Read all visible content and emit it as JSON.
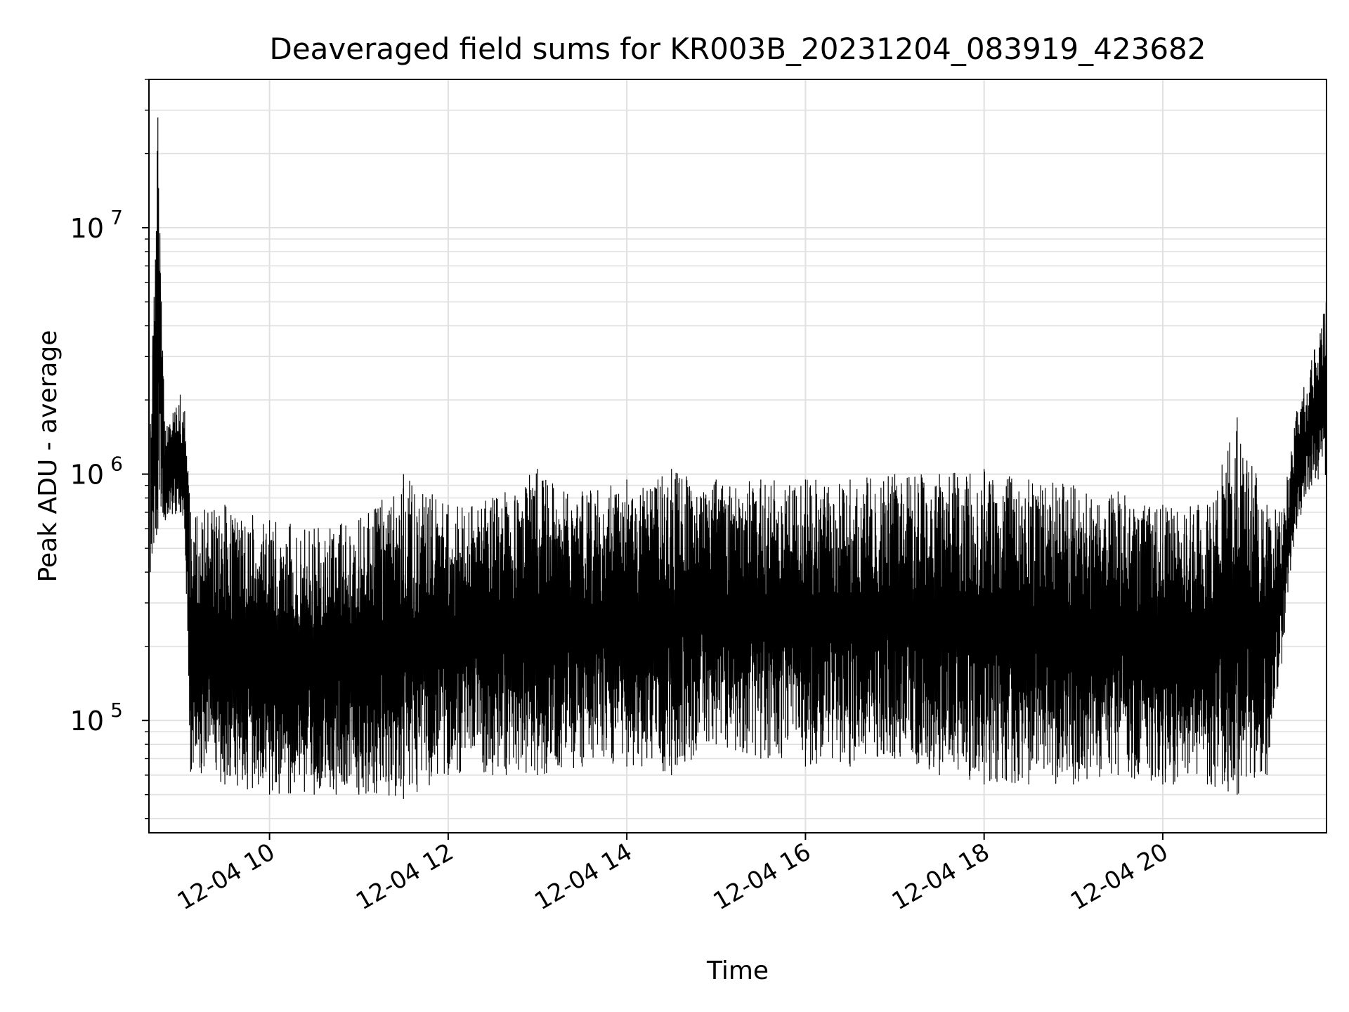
{
  "chart_data": {
    "type": "line",
    "title": "Deaveraged field sums for KR003B_20231204_083919_423682",
    "xlabel": "Time",
    "ylabel": "Peak ADU - average",
    "yscale": "log",
    "grid": true,
    "line_color": "#000000",
    "grid_color": "#e0e0e0",
    "xlim": [
      "2023-12-04 08:39",
      "2023-12-04 21:50"
    ],
    "ylim": [
      35000,
      40000000
    ],
    "x_ticks": [
      {
        "time": "2023-12-04 10:00",
        "label": "12-04 10"
      },
      {
        "time": "2023-12-04 12:00",
        "label": "12-04 12"
      },
      {
        "time": "2023-12-04 14:00",
        "label": "12-04 14"
      },
      {
        "time": "2023-12-04 16:00",
        "label": "12-04 16"
      },
      {
        "time": "2023-12-04 18:00",
        "label": "12-04 18"
      },
      {
        "time": "2023-12-04 20:00",
        "label": "12-04 20"
      }
    ],
    "y_ticks": [
      {
        "value": 100000,
        "base": "10",
        "exp": "5"
      },
      {
        "value": 1000000,
        "base": "10",
        "exp": "6"
      },
      {
        "value": 10000000,
        "base": "10",
        "exp": "7"
      }
    ],
    "series": [
      {
        "envelope": [
          {
            "time": "2023-12-04 08:40",
            "low": 400000,
            "high": 1600000
          },
          {
            "time": "2023-12-04 08:45",
            "low": 600000,
            "high": 28000000
          },
          {
            "time": "2023-12-04 08:50",
            "low": 650000,
            "high": 1500000
          },
          {
            "time": "2023-12-04 09:00",
            "low": 700000,
            "high": 2100000
          },
          {
            "time": "2023-12-04 09:03",
            "low": 600000,
            "high": 1800000
          },
          {
            "time": "2023-12-04 09:07",
            "low": 62000,
            "high": 700000
          },
          {
            "time": "2023-12-04 09:30",
            "low": 55000,
            "high": 750000
          },
          {
            "time": "2023-12-04 10:00",
            "low": 50000,
            "high": 650000
          },
          {
            "time": "2023-12-04 10:30",
            "low": 50000,
            "high": 600000
          },
          {
            "time": "2023-12-04 11:00",
            "low": 50000,
            "high": 650000
          },
          {
            "time": "2023-12-04 11:30",
            "low": 48000,
            "high": 1000000
          },
          {
            "time": "2023-12-04 12:00",
            "low": 60000,
            "high": 750000
          },
          {
            "time": "2023-12-04 12:30",
            "low": 60000,
            "high": 800000
          },
          {
            "time": "2023-12-04 13:00",
            "low": 60000,
            "high": 1050000
          },
          {
            "time": "2023-12-04 13:30",
            "low": 65000,
            "high": 850000
          },
          {
            "time": "2023-12-04 14:00",
            "low": 65000,
            "high": 950000
          },
          {
            "time": "2023-12-04 14:30",
            "low": 60000,
            "high": 1050000
          },
          {
            "time": "2023-12-04 15:00",
            "low": 80000,
            "high": 950000
          },
          {
            "time": "2023-12-04 15:30",
            "low": 70000,
            "high": 950000
          },
          {
            "time": "2023-12-04 16:00",
            "low": 65000,
            "high": 950000
          },
          {
            "time": "2023-12-04 16:30",
            "low": 65000,
            "high": 950000
          },
          {
            "time": "2023-12-04 17:00",
            "low": 70000,
            "high": 1000000
          },
          {
            "time": "2023-12-04 17:30",
            "low": 60000,
            "high": 1000000
          },
          {
            "time": "2023-12-04 18:00",
            "low": 55000,
            "high": 1050000
          },
          {
            "time": "2023-12-04 18:30",
            "low": 55000,
            "high": 950000
          },
          {
            "time": "2023-12-04 19:00",
            "low": 55000,
            "high": 900000
          },
          {
            "time": "2023-12-04 19:30",
            "low": 60000,
            "high": 850000
          },
          {
            "time": "2023-12-04 20:00",
            "low": 55000,
            "high": 750000
          },
          {
            "time": "2023-12-04 20:30",
            "low": 55000,
            "high": 750000
          },
          {
            "time": "2023-12-04 20:50",
            "low": 50000,
            "high": 1700000
          },
          {
            "time": "2023-12-04 21:10",
            "low": 60000,
            "high": 750000
          },
          {
            "time": "2023-12-04 21:20",
            "low": 170000,
            "high": 700000
          },
          {
            "time": "2023-12-04 21:30",
            "low": 600000,
            "high": 1800000
          },
          {
            "time": "2023-12-04 21:40",
            "low": 900000,
            "high": 2900000
          },
          {
            "time": "2023-12-04 21:50",
            "low": 1000000,
            "high": 5200000
          }
        ]
      }
    ]
  }
}
